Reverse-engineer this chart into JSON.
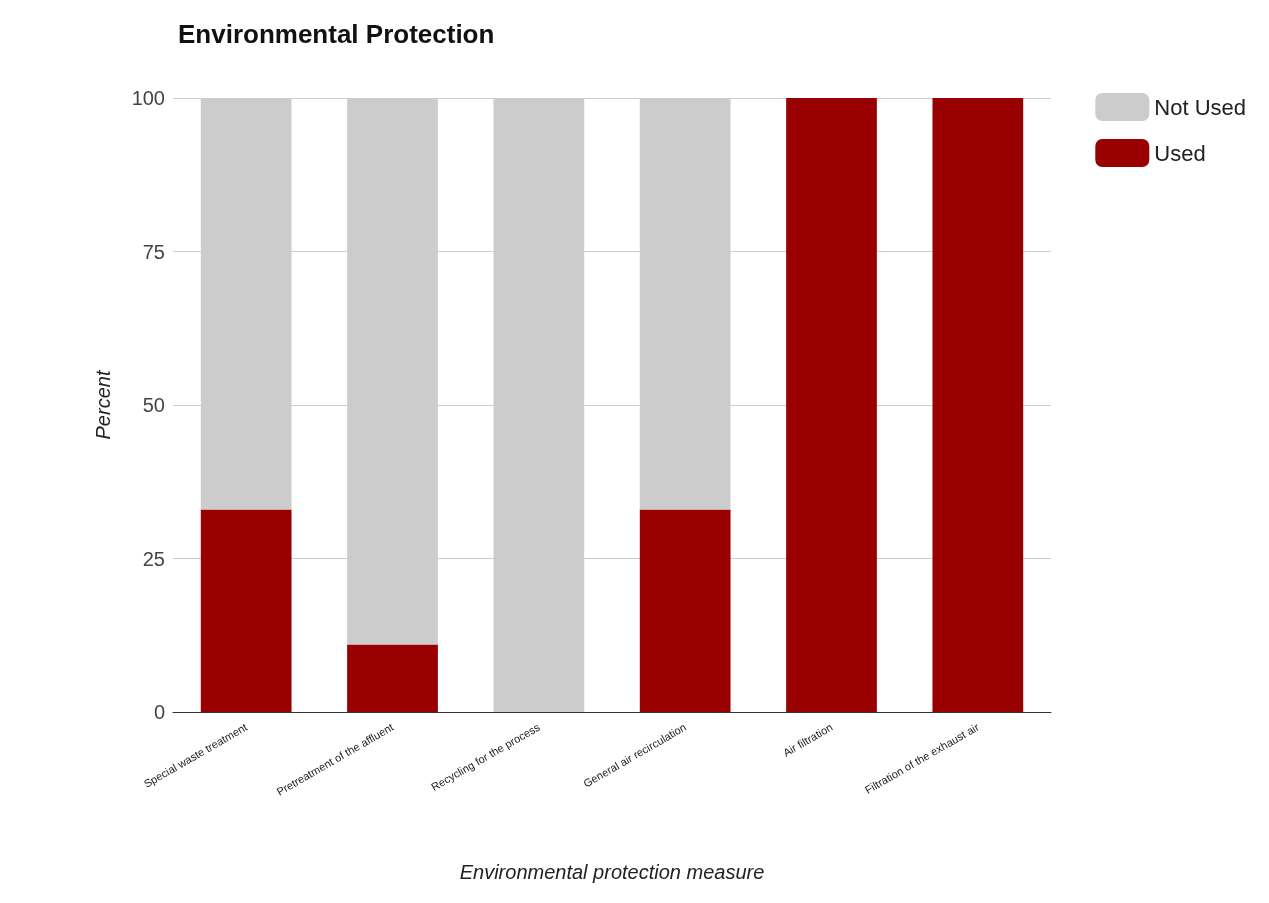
{
  "chart_data": {
    "type": "bar",
    "title": "Environmental Protection",
    "xlabel": "Environmental protection measure",
    "ylabel": "Percent",
    "categories": [
      "Special waste treatment",
      "Pretreatment of the affluent",
      "Recycling for the process",
      "General air recirculation",
      "Air filtration",
      "Filtration of the exhaust air"
    ],
    "series": [
      {
        "name": "Used",
        "color": "#990000",
        "values": [
          33,
          11,
          0,
          33,
          100,
          100
        ]
      },
      {
        "name": "Not Used",
        "color": "#cccccc",
        "values": [
          67,
          89,
          100,
          67,
          0,
          0
        ]
      }
    ],
    "stacked": true,
    "ylim": [
      0,
      100
    ],
    "yticks": [
      0,
      25,
      50,
      75,
      100
    ],
    "grid": "y",
    "legend": "top right"
  }
}
